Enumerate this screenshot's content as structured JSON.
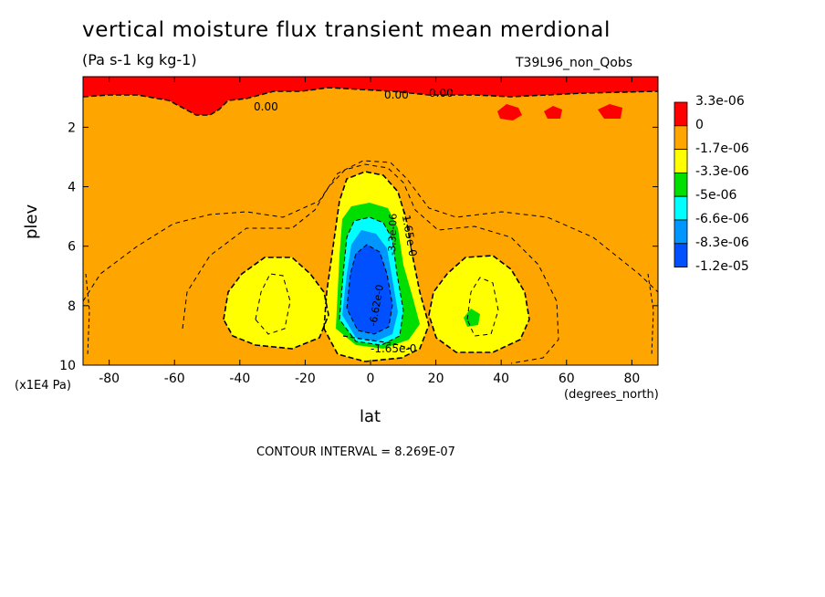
{
  "chart_data": {
    "type": "contour",
    "title": "vertical moisture flux transient mean merdional",
    "units": "(Pa s-1 kg kg-1)",
    "experiment": "T39L96_non_Qobs",
    "xlabel": "lat",
    "x_units": "(degrees_north)",
    "ylabel": "plev",
    "y_units": "(x1E4 Pa)",
    "xlim": [
      -88,
      88
    ],
    "ylim": [
      10,
      0.3
    ],
    "x_ticks": [
      "-80",
      "-60",
      "-40",
      "-20",
      "0",
      "20",
      "40",
      "60",
      "80"
    ],
    "x_tick_values": [
      -80,
      -60,
      -40,
      -20,
      0,
      20,
      40,
      60,
      80
    ],
    "y_ticks": [
      "2",
      "4",
      "6",
      "8",
      "10"
    ],
    "y_tick_values": [
      2,
      4,
      6,
      8,
      10
    ],
    "contour_interval_text": "CONTOUR INTERVAL = 8.269E-07",
    "contour_labels": [
      "0.00",
      "0.00",
      "0.00",
      "-1.65e-0",
      "-3.3e-06",
      "-6.62e-0",
      "-1.65e-0"
    ],
    "colorbar": {
      "labels": [
        "3.3e-06",
        "0",
        "-1.7e-06",
        "-3.3e-06",
        "-5e-06",
        "-6.6e-06",
        "-8.3e-06",
        "-1.2e-05"
      ],
      "colors": [
        "#ff0000",
        "#ffa500",
        "#ffff00",
        "#00e000",
        "#00ffff",
        "#0096ff",
        "#0050ff"
      ]
    }
  }
}
